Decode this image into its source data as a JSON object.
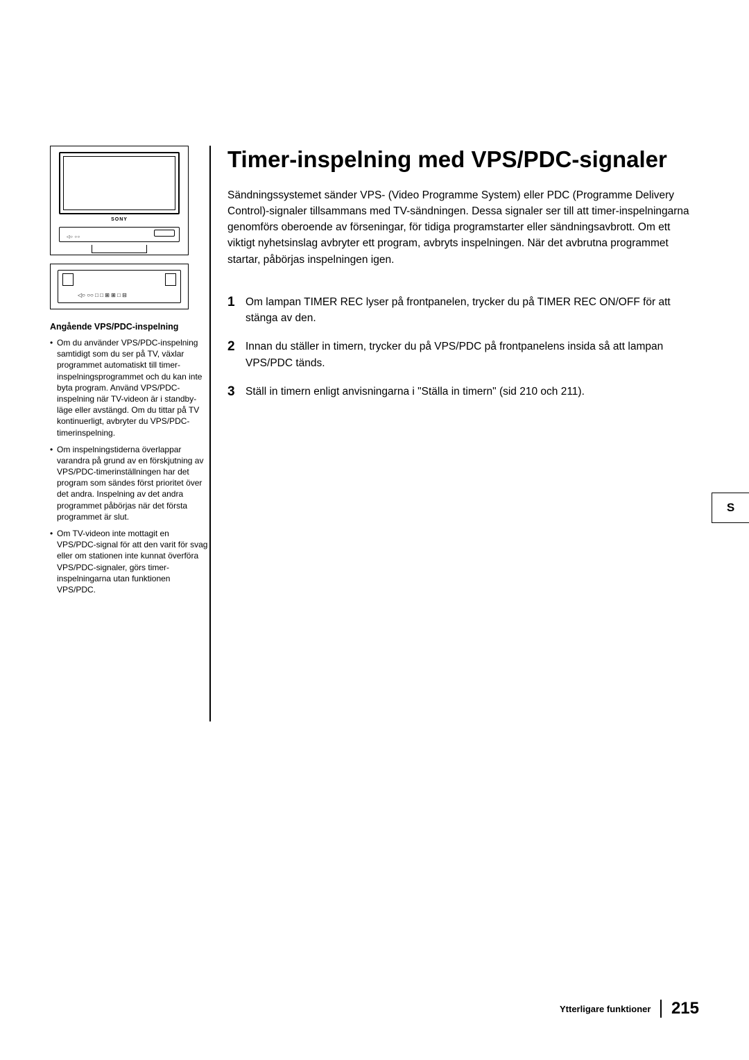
{
  "title": "Timer-inspelning med VPS/PDC-signaler",
  "intro": "Sändningssystemet sänder VPS- (Video Programme System) eller PDC (Programme Delivery Control)-signaler tillsammans med TV-sändningen. Dessa signaler ser till att timer-inspelningarna genomförs oberoende av förseningar, för tidiga programstarter eller sändningsavbrott. Om ett viktigt nyhetsinslag avbryter ett program, avbryts inspelningen. När det avbrutna programmet startar, påbörjas inspelningen igen.",
  "steps": [
    {
      "num": "1",
      "text": "Om lampan TIMER REC lyser på frontpanelen, trycker du på TIMER REC ON/OFF för att stänga av den."
    },
    {
      "num": "2",
      "text": "Innan du ställer in timern, trycker du på VPS/PDC på frontpanelens insida så att lampan VPS/PDC tänds."
    },
    {
      "num": "3",
      "text": "Ställ in timern enligt anvisningarna i \"Ställa in timern\" (sid 210 och 211)."
    }
  ],
  "sidebar": {
    "heading": "Angående VPS/PDC-inspelning",
    "items": [
      "Om du använder VPS/PDC-inspelning samtidigt som du ser på TV, växlar programmet automatiskt till timer-inspelningsprogrammet och du kan inte byta program. Använd VPS/PDC-inspelning när TV-videon är i standby-läge eller avstängd. Om du tittar på TV kontinuerligt, avbryter du VPS/PDC-timerinspelning.",
      "Om inspelningstiderna överlappar varandra på grund av en förskjutning av VPS/PDC-timerinställningen har det program som sändes först prioritet över det andra. Inspelning av det andra programmet påbörjas när det första programmet är slut.",
      "Om TV-videon inte mottagit en VPS/PDC-signal för att den varit för svag eller om stationen inte kunnat överföra VPS/PDC-signaler, görs timer-inspelningarna utan funktionen VPS/PDC."
    ]
  },
  "illustration": {
    "sony_label": "SONY",
    "vcr_controls": "◁○ ○○",
    "vcr_display": "",
    "vcr2_buttons": "◁○ ○○    □ □ ⊞ ⊞ □ ⊟"
  },
  "side_tab": "S",
  "footer": {
    "section": "Ytterligare funktioner",
    "page": "215"
  },
  "colors": {
    "text": "#000000",
    "background": "#ffffff"
  }
}
